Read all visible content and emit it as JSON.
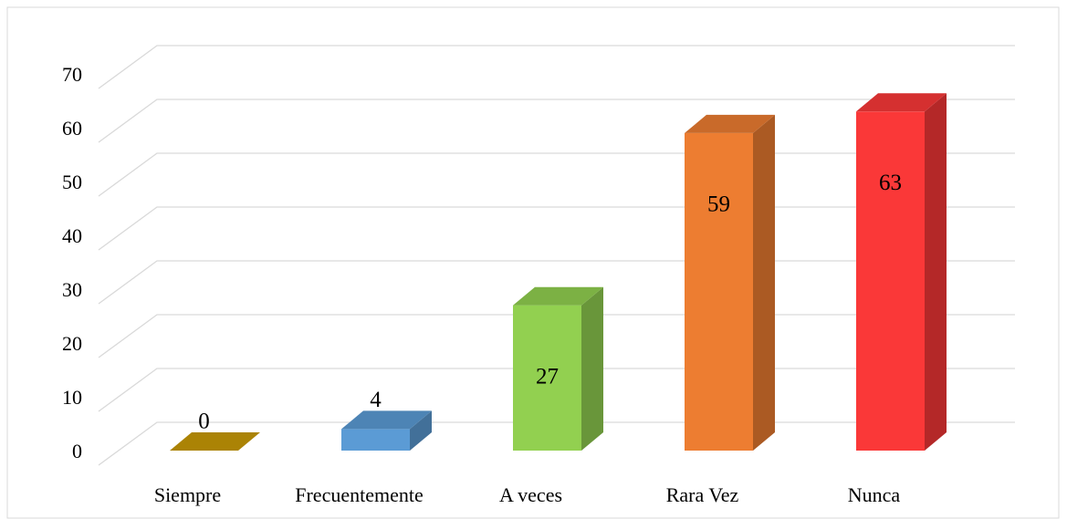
{
  "chart_data": {
    "type": "bar3d",
    "categories": [
      "Siempre",
      "Frecuentemente",
      "A veces",
      "Rara Vez",
      "Nunca"
    ],
    "values": [
      0,
      4,
      27,
      59,
      63
    ],
    "colors": [
      "#c99a06",
      "#5b9bd5",
      "#92d050",
      "#ed7d31",
      "#fa3838"
    ],
    "ylim": [
      0,
      70
    ],
    "yticks": [
      0,
      10,
      20,
      30,
      40,
      50,
      60,
      70
    ],
    "grid": true
  }
}
